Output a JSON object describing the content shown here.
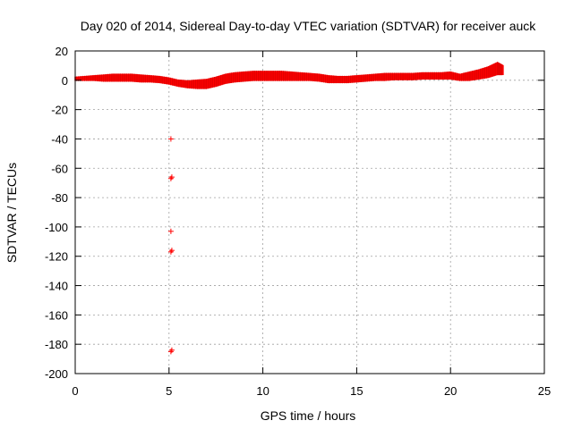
{
  "chart_data": {
    "type": "scatter",
    "title": "Day 020 of 2014, Sidereal Day-to-day VTEC variation (SDTVAR) for receiver auck",
    "xlabel": "GPS time / hours",
    "ylabel": "SDTVAR / TECUs",
    "xlim": [
      0,
      25
    ],
    "ylim": [
      -200,
      20
    ],
    "x_ticks": [
      0,
      5,
      10,
      15,
      20,
      25
    ],
    "y_ticks": [
      20,
      0,
      -20,
      -40,
      -60,
      -80,
      -100,
      -120,
      -140,
      -160,
      -180,
      -200
    ],
    "grid": true,
    "legend": "none",
    "series_color": "#ff0000",
    "band": {
      "x": [
        0,
        0.5,
        1,
        1.5,
        2,
        2.5,
        3,
        3.5,
        4,
        4.5,
        5,
        5.5,
        6,
        6.5,
        7,
        7.5,
        8,
        8.5,
        9,
        9.5,
        10,
        10.5,
        11,
        11.5,
        12,
        12.5,
        13,
        13.5,
        14,
        14.5,
        15,
        15.5,
        16,
        16.5,
        17,
        17.5,
        18,
        18.5,
        19,
        19.5,
        20,
        20.5,
        21,
        21.5,
        22,
        22.5,
        22.8
      ],
      "upper": [
        2,
        2.5,
        3,
        3.5,
        4,
        4,
        4,
        3.5,
        3,
        2.5,
        1.5,
        0,
        -0.5,
        0,
        0.5,
        2,
        4,
        5,
        5.5,
        6,
        6,
        6,
        6,
        5.5,
        5,
        4.5,
        4,
        3,
        2.5,
        2.5,
        3,
        3.5,
        4,
        4.5,
        4.5,
        4.5,
        4.5,
        5,
        5,
        5,
        5.5,
        4,
        5.5,
        7,
        9,
        12,
        10
      ],
      "lower": [
        0,
        0,
        0,
        -0.5,
        -0.5,
        -0.5,
        -0.5,
        -1,
        -1,
        -1.5,
        -2.5,
        -4,
        -5,
        -5.5,
        -5.5,
        -4,
        -2,
        -1,
        -0.5,
        0,
        0,
        0,
        0,
        0,
        0,
        0,
        -0.5,
        -1.5,
        -1.5,
        -1.5,
        -1,
        -0.5,
        0,
        0,
        0.5,
        0.5,
        0.5,
        1,
        1,
        1,
        1,
        0,
        0,
        1,
        2,
        4,
        4
      ]
    },
    "outliers": [
      {
        "x": 5.1,
        "y": -40
      },
      {
        "x": 5.1,
        "y": -67
      },
      {
        "x": 5.15,
        "y": -66
      },
      {
        "x": 5.1,
        "y": -103
      },
      {
        "x": 5.1,
        "y": -117
      },
      {
        "x": 5.15,
        "y": -116
      },
      {
        "x": 5.1,
        "y": -185
      },
      {
        "x": 5.15,
        "y": -184
      }
    ]
  }
}
